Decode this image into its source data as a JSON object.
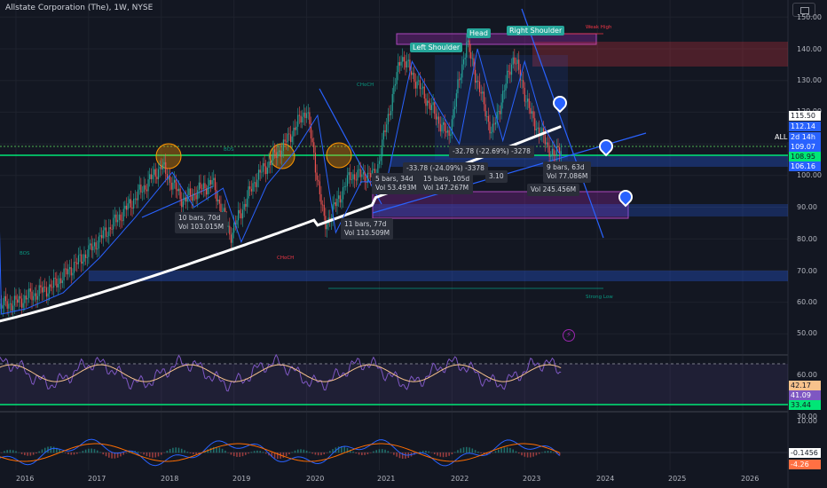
{
  "header": {
    "title": "Allstate Corporation (The), 1W, NYSE"
  },
  "price_axis": {
    "ticks": [
      {
        "label": "150.00"
      },
      {
        "label": "140.00"
      },
      {
        "label": "130.00"
      },
      {
        "label": "120.00"
      },
      {
        "label": "100.00"
      },
      {
        "label": "90.00"
      },
      {
        "label": "80.00"
      },
      {
        "label": "70.00"
      },
      {
        "label": "60.00"
      },
      {
        "label": "50.00"
      }
    ],
    "badges": [
      {
        "label": "115.50",
        "bg": "#ffffff",
        "fg": "#131722"
      },
      {
        "label": "112.14",
        "bg": "#2962ff",
        "fg": "#ffffff"
      },
      {
        "label": "ALL",
        "bg": "#131722",
        "fg": "#ffffff"
      },
      {
        "label": "109.07",
        "bg": "#2962ff",
        "fg": "#ffffff"
      },
      {
        "label": "108.95",
        "bg": "#00e676",
        "fg": "#131722"
      },
      {
        "label": "106.16",
        "bg": "#2962ff",
        "fg": "#ffffff"
      }
    ],
    "countdown": "2d 14h"
  },
  "rsi_axis": {
    "ticks": [
      {
        "label": "60.00"
      },
      {
        "label": "30.00"
      }
    ],
    "badges": [
      {
        "label": "42.17",
        "bg": "#f7c28c",
        "fg": "#131722"
      },
      {
        "label": "41.09",
        "bg": "#7e57c2",
        "fg": "#ffffff"
      },
      {
        "label": "33.44",
        "bg": "#00e676",
        "fg": "#131722"
      }
    ]
  },
  "macd_axis": {
    "ticks": [
      {
        "label": "10.00"
      }
    ],
    "badges": [
      {
        "label": "-0.1456",
        "bg": "#ffffff",
        "fg": "#131722"
      },
      {
        "label": "-4.26",
        "bg": "#ff7043",
        "fg": "#ffffff"
      }
    ]
  },
  "time_axis": [
    "2016",
    "2017",
    "2018",
    "2019",
    "2020",
    "2021",
    "2022",
    "2023",
    "2024",
    "2025",
    "2026"
  ],
  "pattern_labels": {
    "left_shoulder": "Left Shoulder",
    "head": "Head",
    "right_shoulder": "Right Shoulder",
    "weak_high": "Weak High",
    "strong_low": "Strong Low"
  },
  "structure_labels": {
    "choch_2020": "CHoCH",
    "choch_2019": "CHoCH",
    "bos_2016": "BOS",
    "bos_2018": "BOS"
  },
  "range_tooltips": [
    {
      "line1": "10 bars, 70d",
      "line2": "Vol 103.015M"
    },
    {
      "line1": "11 bars, 77d",
      "line2": "Vol 110.509M"
    },
    {
      "line1": "5 bars, 34d",
      "line2": "Vol 53.493M"
    },
    {
      "line1": "15 bars, 105d",
      "line2": "Vol 147.267M"
    },
    {
      "line1": "9 bars, 63d",
      "line2": "Vol 77.086M"
    },
    {
      "line1": "",
      "line2": "Vol 245.456M"
    }
  ],
  "measure_labels": {
    "drop1": "-32.78 (-22.69%) -3278",
    "drop2": "-33.78 (-24.09%) -3378",
    "extra": "3.10"
  },
  "icons": {
    "fundamentals": "⚡"
  },
  "chart_data": {
    "type": "candlestick",
    "title": "Allstate Corporation (The), 1W, NYSE",
    "x_axis": [
      "2016",
      "2017",
      "2018",
      "2019",
      "2020",
      "2021",
      "2022",
      "2023",
      "2024",
      "2025",
      "2026"
    ],
    "y_range": [
      45,
      152
    ],
    "price_path": [
      {
        "x": 2015.6,
        "y": 58
      },
      {
        "x": 2016.0,
        "y": 60
      },
      {
        "x": 2016.5,
        "y": 65
      },
      {
        "x": 2017.0,
        "y": 76
      },
      {
        "x": 2017.5,
        "y": 89
      },
      {
        "x": 2018.0,
        "y": 103
      },
      {
        "x": 2018.3,
        "y": 92
      },
      {
        "x": 2018.7,
        "y": 98
      },
      {
        "x": 2018.95,
        "y": 81
      },
      {
        "x": 2019.3,
        "y": 99
      },
      {
        "x": 2019.7,
        "y": 110
      },
      {
        "x": 2020.0,
        "y": 121
      },
      {
        "x": 2020.25,
        "y": 84
      },
      {
        "x": 2020.6,
        "y": 100
      },
      {
        "x": 2020.95,
        "y": 100
      },
      {
        "x": 2021.3,
        "y": 138
      },
      {
        "x": 2021.7,
        "y": 122
      },
      {
        "x": 2021.95,
        "y": 112
      },
      {
        "x": 2022.2,
        "y": 142
      },
      {
        "x": 2022.55,
        "y": 113
      },
      {
        "x": 2022.85,
        "y": 138
      },
      {
        "x": 2023.1,
        "y": 118
      },
      {
        "x": 2023.4,
        "y": 106
      },
      {
        "x": 2023.5,
        "y": 109
      }
    ],
    "moving_average_200": {
      "start": 53,
      "end": 115.5
    },
    "rsi_latest": 41.09,
    "rsi_ma_latest": 42.17,
    "macd_latest": -0.1456,
    "macd_hist_latest": -4.26
  }
}
